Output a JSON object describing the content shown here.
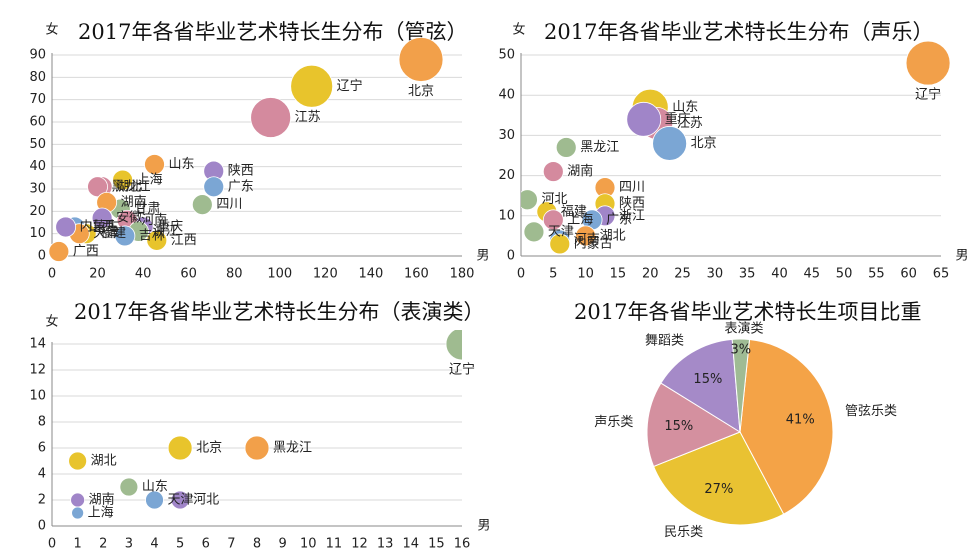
{
  "chart_data": [
    {
      "type": "scatter",
      "title": "2017年各省毕业艺术特长生分布（管弦）",
      "xlabel": "男",
      "ylabel": "女",
      "xlim": [
        0,
        180
      ],
      "ylim": [
        0,
        90
      ],
      "xticks": [
        "0",
        "20",
        "40",
        "60",
        "80",
        "100",
        "120",
        "140",
        "160",
        "180"
      ],
      "yticks": [
        "0",
        "10",
        "20",
        "30",
        "40",
        "50",
        "60",
        "70",
        "80",
        "90"
      ],
      "points": [
        {
          "label": "北京",
          "x": 162,
          "y": 88,
          "color": "#f2a04a"
        },
        {
          "label": "辽宁",
          "x": 114,
          "y": 76,
          "color": "#e8c42c"
        },
        {
          "label": "江苏",
          "x": 96,
          "y": 62,
          "color": "#d48a9e"
        },
        {
          "label": "山东",
          "x": 45,
          "y": 41,
          "color": "#f2a04a"
        },
        {
          "label": "陕西",
          "x": 71,
          "y": 38,
          "color": "#a085c8"
        },
        {
          "label": "黑龙江",
          "x": 20,
          "y": 31,
          "color": "#d48a9e"
        },
        {
          "label": "上海",
          "x": 31,
          "y": 34,
          "color": "#e8c42c"
        },
        {
          "label": "湖北",
          "x": 22,
          "y": 31,
          "color": "#d48a9e"
        },
        {
          "label": "广东",
          "x": 71,
          "y": 31,
          "color": "#7ba6d4"
        },
        {
          "label": "四川",
          "x": 66,
          "y": 23,
          "color": "#9fbb90"
        },
        {
          "label": "甘肃",
          "x": 30,
          "y": 21,
          "color": "#9fbb90"
        },
        {
          "label": "湖南",
          "x": 24,
          "y": 24,
          "color": "#f2a04a"
        },
        {
          "label": "安徽",
          "x": 22,
          "y": 17,
          "color": "#a085c8"
        },
        {
          "label": "河南",
          "x": 33,
          "y": 16,
          "color": "#d48a9e"
        },
        {
          "label": "重庆",
          "x": 40,
          "y": 13,
          "color": "#a085c8"
        },
        {
          "label": "浙江",
          "x": 38,
          "y": 11,
          "color": "#9fbb90"
        },
        {
          "label": "山西",
          "x": 10,
          "y": 13,
          "color": "#7ba6d4"
        },
        {
          "label": "内蒙古",
          "x": 6,
          "y": 13,
          "color": "#a085c8"
        },
        {
          "label": "福建",
          "x": 15,
          "y": 10,
          "color": "#e8c42c"
        },
        {
          "label": "吉林",
          "x": 32,
          "y": 9,
          "color": "#7ba6d4"
        },
        {
          "label": "天津",
          "x": 12,
          "y": 10,
          "color": "#f2a04a"
        },
        {
          "label": "江西",
          "x": 46,
          "y": 7,
          "color": "#e8c42c"
        },
        {
          "label": "广西",
          "x": 3,
          "y": 2,
          "color": "#f2a04a"
        }
      ]
    },
    {
      "type": "scatter",
      "title": "2017年各省毕业艺术特长生分布（声乐）",
      "xlabel": "男",
      "ylabel": "女",
      "xlim": [
        0,
        65
      ],
      "ylim": [
        0,
        50
      ],
      "xticks": [
        "0",
        "5",
        "10",
        "15",
        "20",
        "25",
        "30",
        "35",
        "40",
        "45",
        "50",
        "55",
        "60",
        "65"
      ],
      "yticks": [
        "0",
        "10",
        "20",
        "30",
        "40",
        "50"
      ],
      "points": [
        {
          "label": "辽宁",
          "x": 63,
          "y": 48,
          "color": "#f2a04a"
        },
        {
          "label": "山东",
          "x": 20,
          "y": 37,
          "color": "#e8c42c"
        },
        {
          "label": "江苏",
          "x": 21,
          "y": 33,
          "color": "#d48a9e"
        },
        {
          "label": "重庆",
          "x": 19,
          "y": 34,
          "color": "#a085c8"
        },
        {
          "label": "北京",
          "x": 23,
          "y": 28,
          "color": "#7ba6d4"
        },
        {
          "label": "河北",
          "x": 1,
          "y": 14,
          "color": "#9fbb90"
        },
        {
          "label": "黑龙江",
          "x": 7,
          "y": 27,
          "color": "#9fbb90"
        },
        {
          "label": "湖南",
          "x": 5,
          "y": 21,
          "color": "#d48a9e"
        },
        {
          "label": "四川",
          "x": 13,
          "y": 17,
          "color": "#f2a04a"
        },
        {
          "label": "陕西",
          "x": 13,
          "y": 13,
          "color": "#e8c42c"
        },
        {
          "label": "福建",
          "x": 4,
          "y": 11,
          "color": "#e8c42c"
        },
        {
          "label": "浙江",
          "x": 13,
          "y": 10,
          "color": "#a085c8"
        },
        {
          "label": "上海",
          "x": 5,
          "y": 9,
          "color": "#d48a9e"
        },
        {
          "label": "广东",
          "x": 11,
          "y": 9,
          "color": "#7ba6d4"
        },
        {
          "label": "湖北",
          "x": 10,
          "y": 5,
          "color": "#f2a04a"
        },
        {
          "label": "天津",
          "x": 2,
          "y": 6,
          "color": "#9fbb90"
        },
        {
          "label": "河南",
          "x": 6,
          "y": 4,
          "color": "#7ba6d4"
        },
        {
          "label": "内蒙古",
          "x": 6,
          "y": 3,
          "color": "#e8c42c"
        }
      ]
    },
    {
      "type": "scatter",
      "title": "2017年各省毕业艺术特长生分布（表演类）",
      "xlabel": "男",
      "ylabel": "女",
      "xlim": [
        0,
        16
      ],
      "ylim": [
        0,
        14
      ],
      "xticks": [
        "0",
        "1",
        "2",
        "3",
        "4",
        "5",
        "6",
        "7",
        "8",
        "9",
        "10",
        "11",
        "12",
        "13",
        "14",
        "15",
        "16"
      ],
      "yticks": [
        "0",
        "2",
        "4",
        "6",
        "8",
        "10",
        "12",
        "14"
      ],
      "points": [
        {
          "label": "辽宁",
          "x": 16,
          "y": 14,
          "color": "#9fbb90"
        },
        {
          "label": "北京",
          "x": 5,
          "y": 6,
          "color": "#e8c42c"
        },
        {
          "label": "黑龙江",
          "x": 8,
          "y": 6,
          "color": "#f2a04a"
        },
        {
          "label": "湖北",
          "x": 1,
          "y": 5,
          "color": "#e8c42c"
        },
        {
          "label": "山东",
          "x": 3,
          "y": 3,
          "color": "#9fbb90"
        },
        {
          "label": "天津",
          "x": 4,
          "y": 2,
          "color": "#7ba6d4"
        },
        {
          "label": "河北",
          "x": 5,
          "y": 2,
          "color": "#a085c8"
        },
        {
          "label": "湖南",
          "x": 1,
          "y": 2,
          "color": "#a085c8"
        },
        {
          "label": "上海",
          "x": 1,
          "y": 1,
          "color": "#7ba6d4"
        }
      ]
    },
    {
      "type": "pie",
      "title": "2017年各省毕业艺术特长生项目比重",
      "slices": [
        {
          "label": "管弦乐类",
          "value": 41,
          "text": "41%",
          "color": "#f4a347"
        },
        {
          "label": "民乐类",
          "value": 27,
          "text": "27%",
          "color": "#e9c232"
        },
        {
          "label": "声乐类",
          "value": 15,
          "text": "15%",
          "color": "#d4909f"
        },
        {
          "label": "舞蹈类",
          "value": 15,
          "text": "15%",
          "color": "#a58ac8"
        },
        {
          "label": "表演类",
          "value": 3,
          "text": "3%",
          "color": "#9fbb94"
        }
      ]
    }
  ]
}
